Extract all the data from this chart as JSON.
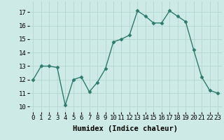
{
  "x": [
    0,
    1,
    2,
    3,
    4,
    5,
    6,
    7,
    8,
    9,
    10,
    11,
    12,
    13,
    14,
    15,
    16,
    17,
    18,
    19,
    20,
    21,
    22,
    23
  ],
  "y": [
    12.0,
    13.0,
    13.0,
    12.9,
    10.1,
    12.0,
    12.2,
    11.1,
    11.8,
    12.8,
    14.8,
    15.0,
    15.3,
    17.1,
    16.7,
    16.2,
    16.2,
    17.1,
    16.7,
    16.3,
    14.2,
    12.2,
    11.2,
    11.0
  ],
  "line_color": "#2d7a6e",
  "marker": "D",
  "markersize": 2.5,
  "linewidth": 1.0,
  "bg_color": "#ceeae6",
  "grid_color": "#b8d8d4",
  "xlabel": "Humidex (Indice chaleur)",
  "xlabel_fontsize": 7.5,
  "tick_fontsize": 6.5,
  "ylim": [
    9.6,
    17.8
  ],
  "yticks": [
    10,
    11,
    12,
    13,
    14,
    15,
    16,
    17
  ],
  "xticks": [
    0,
    1,
    2,
    3,
    4,
    5,
    6,
    7,
    8,
    9,
    10,
    11,
    12,
    13,
    14,
    15,
    16,
    17,
    18,
    19,
    20,
    21,
    22,
    23
  ]
}
